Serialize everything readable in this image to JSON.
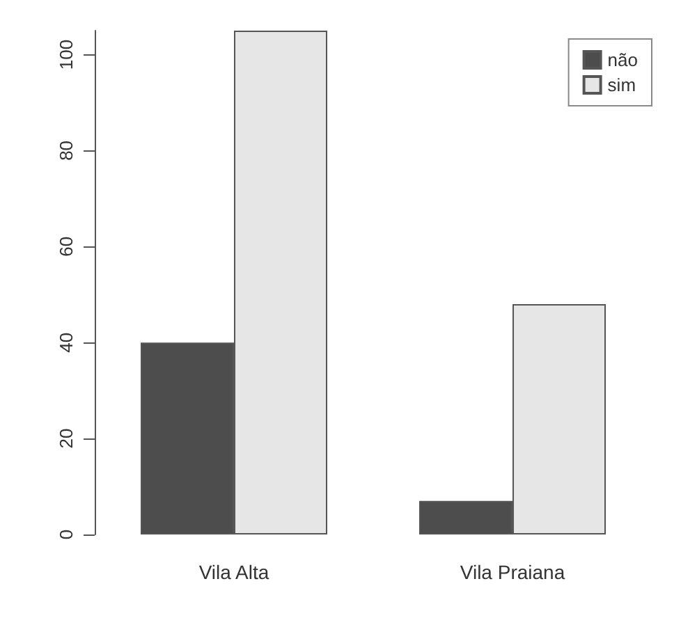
{
  "chart_data": {
    "type": "bar",
    "categories": [
      "Vila Alta",
      "Vila Praiana"
    ],
    "series": [
      {
        "name": "não",
        "color": "#4d4d4d",
        "values": [
          40,
          7
        ]
      },
      {
        "name": "sim",
        "color": "#e6e6e6",
        "values": [
          105,
          48
        ]
      }
    ],
    "ylim": [
      0,
      105
    ],
    "yticks": [
      0,
      20,
      40,
      60,
      80,
      100
    ],
    "grid": false,
    "legend": "top right"
  }
}
